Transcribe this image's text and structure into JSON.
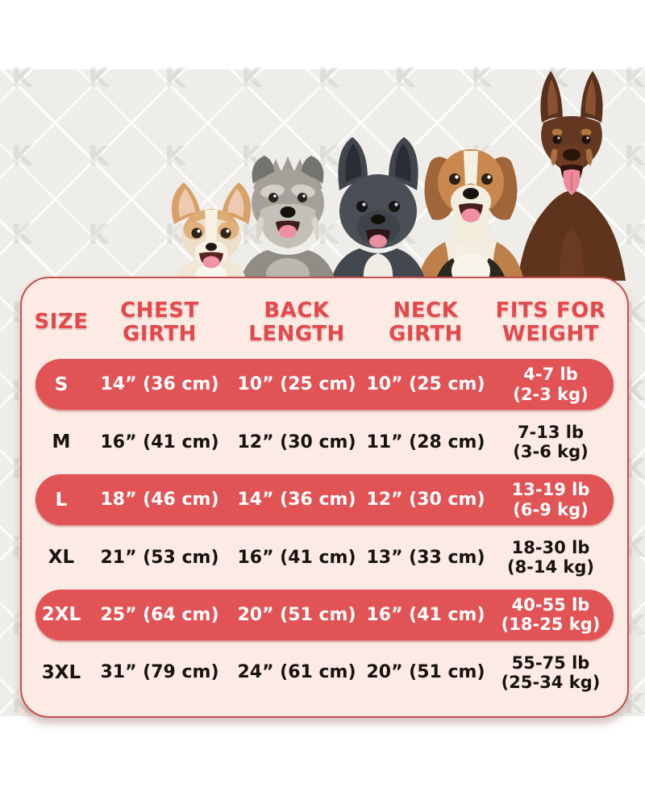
{
  "chart_data": {
    "type": "table",
    "title": "",
    "columns": [
      "SIZE",
      "CHEST GIRTH",
      "BACK LENGTH",
      "NECK GIRTH",
      "FITS FOR WEIGHT"
    ],
    "rows": [
      {
        "size": "S",
        "chest_girth": "14” (36 cm)",
        "back_length": "10” (25 cm)",
        "neck_girth": "10” (25 cm)",
        "weight": "4-7 lb (2-3 kg)",
        "weight_line1": "4-7 lb",
        "weight_line2": "(2-3 kg)",
        "highlighted": true
      },
      {
        "size": "M",
        "chest_girth": "16” (41 cm)",
        "back_length": "12” (30 cm)",
        "neck_girth": "11” (28 cm)",
        "weight": "7-13 lb (3-6 kg)",
        "weight_line1": "7-13 lb",
        "weight_line2": "(3-6 kg)",
        "highlighted": false
      },
      {
        "size": "L",
        "chest_girth": "18” (46 cm)",
        "back_length": "14” (36 cm)",
        "neck_girth": "12” (30 cm)",
        "weight": "13-19 lb (6-9 kg)",
        "weight_line1": "13-19 lb",
        "weight_line2": "(6-9 kg)",
        "highlighted": true
      },
      {
        "size": "XL",
        "chest_girth": "21” (53 cm)",
        "back_length": "16” (41 cm)",
        "neck_girth": "13” (33 cm)",
        "weight": "18-30 lb (8-14 kg)",
        "weight_line1": "18-30 lb",
        "weight_line2": "(8-14 kg)",
        "highlighted": false
      },
      {
        "size": "2XL",
        "chest_girth": "25” (64 cm)",
        "back_length": "20” (51 cm)",
        "neck_girth": "16” (41 cm)",
        "weight": "40-55 lb (18-25 kg)",
        "weight_line1": "40-55 lb",
        "weight_line2": "(18-25 kg)",
        "highlighted": true
      },
      {
        "size": "3XL",
        "chest_girth": "31” (79 cm)",
        "back_length": "24” (61 cm)",
        "neck_girth": "20” (51 cm)",
        "weight": "55-75 lb (25-34 kg)",
        "weight_line1": "55-75 lb",
        "weight_line2": "(25-34 kg)",
        "highlighted": false
      }
    ],
    "legend": null,
    "grid": false
  },
  "illustrations": [
    "chihuahua",
    "miniature-schnauzer",
    "french-bulldog",
    "beagle",
    "doberman"
  ],
  "watermark": {
    "letter": "K"
  },
  "colors": {
    "band_bg": "#efede9",
    "card_bg": "#fbebe4",
    "card_border": "#c4504f",
    "pill": "#e25356",
    "header_red": "#e4484b",
    "ink": "#181310",
    "tongue": "#ef90a1"
  }
}
